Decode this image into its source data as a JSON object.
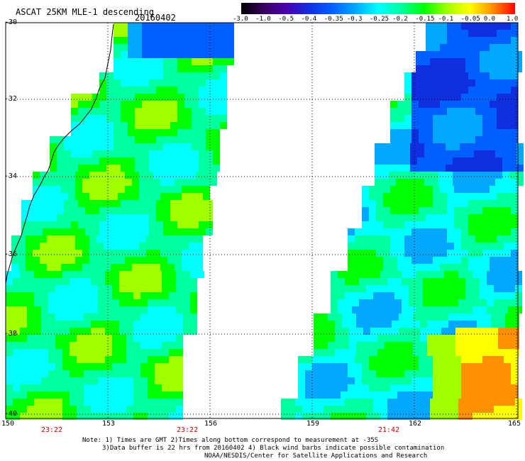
{
  "title": "ASCAT 25KM MLE-1 descending",
  "date": "20160402",
  "colorbar": {
    "ticks": [
      "-3.0",
      "-1.0",
      "-0.5",
      "-0.4",
      "-0.35",
      "-0.3",
      "-0.25",
      "-0.2",
      "-0.15",
      "-0.1",
      "-0.05",
      "0.0",
      "1.0"
    ],
    "colors": [
      "#000000",
      "#3a0060",
      "#4a00b0",
      "#1030e0",
      "#0060ff",
      "#00a8ff",
      "#00ffff",
      "#00ffa0",
      "#00ff00",
      "#a0ff00",
      "#ffff00",
      "#ff9000",
      "#ff0000"
    ]
  },
  "lat_labels": [
    "-30",
    "-32",
    "-34",
    "-36",
    "-38",
    "-40"
  ],
  "lon_labels": [
    "150",
    "153",
    "156",
    "159",
    "162",
    "165"
  ],
  "pass_times": [
    "23:22",
    "23:22",
    "21:42"
  ],
  "notes": [
    "Note: 1) Times are GMT 2)Times along bottom correspond to measurement at -35S",
    "3)Data buffer is 22 hrs from 20160402 4) Black wind barbs indicate possible contamination",
    "NOAA/NESDIS/Center for Satellite Applications and Research"
  ],
  "legend_colors": {
    "coast": "#000000",
    "grid": "#000000",
    "time_label": "#d00000"
  }
}
